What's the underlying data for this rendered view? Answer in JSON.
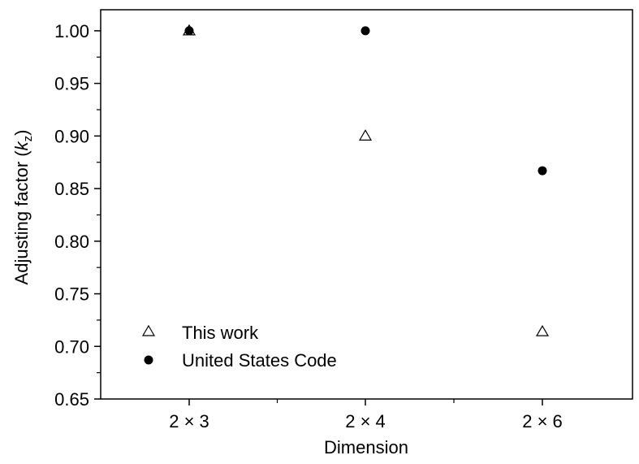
{
  "chart_data": {
    "type": "scatter",
    "xlabel": "Dimension",
    "ylabel": {
      "prefix": "Adjusting factor (",
      "italic": "k",
      "sub": "z",
      "suffix": ")"
    },
    "categories": [
      "2 × 3",
      "2 × 4",
      "2 × 6"
    ],
    "ylim": [
      0.65,
      1.02
    ],
    "yticks": [
      0.65,
      0.7,
      0.75,
      0.8,
      0.85,
      0.9,
      0.95,
      1.0
    ],
    "ytick_labels": [
      "0.65",
      "0.70",
      "0.75",
      "0.80",
      "0.85",
      "0.90",
      "0.95",
      "1.00"
    ],
    "grid": false,
    "legend_position": "bottom-left",
    "series": [
      {
        "name": "This work",
        "marker": "open-triangle",
        "values": [
          1.0,
          0.9,
          0.714
        ]
      },
      {
        "name": "United States Code",
        "marker": "filled-circle",
        "values": [
          1.0,
          1.0,
          0.867
        ]
      }
    ]
  }
}
